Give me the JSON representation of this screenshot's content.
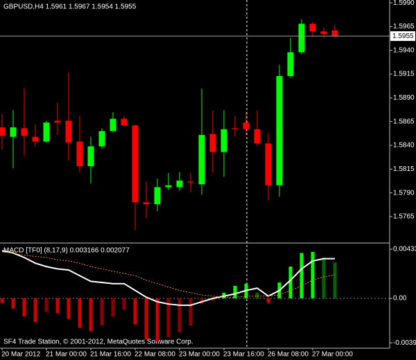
{
  "chart_data": [
    {
      "type": "candlestick",
      "title": "GBPUSD,H4  1.5961 1.5967 1.5954 1.5955",
      "categories": [
        "20 Mar 2012",
        null,
        null,
        null,
        "21 Mar 00:00",
        null,
        null,
        null,
        "21 Mar 16:00",
        null,
        null,
        null,
        "22 Mar 08:00",
        null,
        null,
        null,
        "23 Mar 00:00",
        null,
        null,
        null,
        "23 Mar 16:00",
        null,
        null,
        null,
        "26 Mar 08:00",
        null,
        null,
        null,
        "27 Mar 00:00",
        null,
        null
      ],
      "open": [
        1.5859,
        1.5849,
        1.5858,
        1.5849,
        1.5844,
        1.5866,
        1.5866,
        1.5844,
        1.5818,
        1.5839,
        1.5855,
        1.5868,
        1.5861,
        1.578,
        1.5778,
        1.5796,
        1.5796,
        1.5802,
        1.5799,
        1.5852,
        1.5833,
        1.5858,
        1.5864,
        1.5857,
        1.5842,
        1.5798,
        1.5913,
        1.5938,
        1.5968,
        1.596,
        1.5961
      ],
      "high": [
        1.5873,
        1.5877,
        1.59,
        1.5862,
        1.5866,
        1.5885,
        1.5917,
        1.5871,
        1.5849,
        1.5858,
        1.5875,
        1.5871,
        1.5862,
        1.5802,
        1.5805,
        1.5811,
        1.5812,
        1.5811,
        1.59,
        1.5877,
        1.5877,
        1.5871,
        1.5875,
        1.5877,
        1.5853,
        1.5925,
        1.5953,
        1.5973,
        1.597,
        1.5964,
        1.5967
      ],
      "low": [
        1.5836,
        1.5816,
        1.5829,
        1.5839,
        1.5843,
        1.5851,
        1.5824,
        1.5812,
        1.58,
        1.5836,
        1.5854,
        1.586,
        1.5751,
        1.5763,
        1.5771,
        1.5793,
        1.5792,
        1.5791,
        1.5788,
        1.5811,
        1.5807,
        1.5849,
        1.5851,
        1.5839,
        1.5782,
        1.5786,
        1.5911,
        1.5936,
        1.5954,
        1.5953,
        1.5954
      ],
      "close": [
        1.585,
        1.5859,
        1.585,
        1.5844,
        1.5864,
        1.5864,
        1.5843,
        1.5818,
        1.5839,
        1.5855,
        1.5868,
        1.5861,
        1.578,
        1.5778,
        1.5796,
        1.5798,
        1.5803,
        1.5801,
        1.5851,
        1.5833,
        1.5857,
        1.5857,
        1.5857,
        1.5842,
        1.5798,
        1.5913,
        1.5938,
        1.5968,
        1.596,
        1.5957,
        1.5955
      ],
      "up_color": "#00ff00",
      "down_color": "#ff0000",
      "ylim": [
        1.5738,
        1.5993
      ],
      "yticks": [
        {
          "value": 1.599,
          "label": "1.5990"
        },
        1.5965,
        {
          "value": 1.594,
          "label": "1.5940"
        },
        1.5915,
        {
          "value": 1.589,
          "label": "1.5890"
        },
        1.5865,
        {
          "value": 1.584,
          "label": "1.5840"
        },
        1.5815,
        {
          "value": 1.579,
          "label": "1.5790"
        },
        1.5765
      ],
      "current_price": 1.5955
    },
    {
      "type": "macd",
      "title": "MACD [TF0] (8,17,9) 0.003166 0.002077",
      "histogram": {
        "values": [
          -0.0004,
          -0.0009,
          -0.0016,
          -0.0021,
          -0.0012,
          -0.0013,
          -0.0018,
          -0.0026,
          -0.0029,
          -0.0024,
          -0.0016,
          -0.001,
          -0.0023,
          -0.0036,
          -0.0038,
          -0.0034,
          -0.003,
          -0.0024,
          -0.0005,
          -0.0002,
          0.0005,
          0.0011,
          0.0013,
          0.0005,
          -0.0004,
          0.0014,
          0.0028,
          0.004,
          0.0041,
          0.0036,
          0.003166
        ],
        "colors": [
          "#d00000",
          "#d00000",
          "#d00000",
          "#d00000",
          "#8b0000",
          "#d00000",
          "#d00000",
          "#d00000",
          "#d00000",
          "#8b0000",
          "#8b0000",
          "#8b0000",
          "#d00000",
          "#d00000",
          "#d00000",
          "#8b0000",
          "#8b0000",
          "#8b0000",
          "#8b0000",
          "#8b0000",
          "#00ff00",
          "#00ff00",
          "#00ff00",
          "#006400",
          "#d00000",
          "#00ff00",
          "#00ff00",
          "#00ff00",
          "#00ff00",
          "#006400",
          "#006400"
        ]
      },
      "series": [
        {
          "color": "#ffffff",
          "dashed": false,
          "values": [
            0.0042,
            0.004,
            0.0036,
            0.0031,
            0.0028,
            0.0026,
            0.0025,
            0.002,
            0.0015,
            0.0014,
            0.0013,
            0.0013,
            0.0007,
            0.0001,
            -0.0003,
            -0.0005,
            -0.0006,
            -0.0006,
            -0.0003,
            0.0,
            0.0002,
            0.0004,
            0.0007,
            0.0009,
            0.0002,
            0.0007,
            0.0016,
            0.0026,
            0.0033,
            0.0035,
            0.0035
          ]
        },
        {
          "color": "#ff8c00",
          "dashed": true,
          "values": [
            0.0041,
            0.004,
            0.0038,
            0.0037,
            0.0036,
            0.0034,
            0.0033,
            0.0031,
            0.0028,
            0.0026,
            0.0024,
            0.0022,
            0.002,
            0.0016,
            0.0013,
            0.001,
            0.0007,
            0.0005,
            0.0003,
            0.0002,
            0.0001,
            0.0001,
            0.0002,
            0.0002,
            0.0002,
            0.0003,
            0.0007,
            0.0011,
            0.0016,
            0.0019,
            0.002077
          ]
        }
      ],
      "ylim": [
        -0.00421,
        0.00482
      ],
      "yticks": [
        0.004332,
        {
          "value": 0,
          "label": "0.00"
        },
        -0.00392
      ]
    }
  ],
  "footer": "SF4 Trade Station, © 2001-2012, MetaQuotes Software Corp."
}
